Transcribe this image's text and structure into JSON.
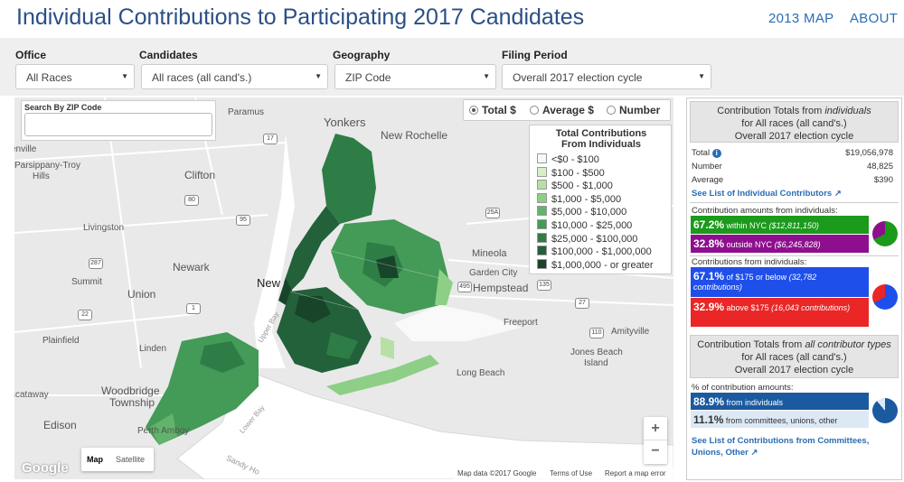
{
  "header": {
    "title": "Individual Contributions to Participating 2017 Candidates",
    "nav_map": "2013 MAP",
    "nav_about": "ABOUT"
  },
  "filters": {
    "office": {
      "label": "Office",
      "value": "All Races"
    },
    "candidates": {
      "label": "Candidates",
      "value": "All races (all cand's.)"
    },
    "geography": {
      "label": "Geography",
      "value": "ZIP Code"
    },
    "period": {
      "label": "Filing Period",
      "value": "Overall 2017 election cycle"
    }
  },
  "map": {
    "search_label": "Search By ZIP Code",
    "search_value": "",
    "radios": [
      {
        "label": "Total $",
        "selected": true
      },
      {
        "label": "Average $",
        "selected": false
      },
      {
        "label": "Number",
        "selected": false
      }
    ],
    "legend_title": "Total Contributions From Individuals",
    "legend": [
      {
        "label": "<$0 - $100",
        "color": "#f6faf5"
      },
      {
        "label": "$100 - $500",
        "color": "#d7efc9"
      },
      {
        "label": "$500 - $1,000",
        "color": "#b6e0a5"
      },
      {
        "label": "$1,000 - $5,000",
        "color": "#8dcf86"
      },
      {
        "label": "$5,000 - $10,000",
        "color": "#62b36b"
      },
      {
        "label": "$10,000 - $25,000",
        "color": "#449a57"
      },
      {
        "label": "$25,000 - $100,000",
        "color": "#2e7d46"
      },
      {
        "label": "$100,000 - $1,000,000",
        "color": "#22613a"
      },
      {
        "label": "$1,000,000 - or greater",
        "color": "#18452a"
      }
    ],
    "places": {
      "yonkers": "Yonkers",
      "paramus": "Paramus",
      "new_rochelle": "New Rochelle",
      "clifton": "Clifton",
      "parsippany": "Parsippany-Troy",
      "hills": "Hills",
      "livingston": "Livingston",
      "newark": "Newark",
      "summit": "Summit",
      "union": "Union",
      "plainfield": "Plainfield",
      "linden": "Linden",
      "woodbridge": "Woodbridge",
      "township": "Township",
      "edison": "Edison",
      "scataway": "scataway",
      "perth_amboy": "Perth Amboy",
      "mineola": "Mineola",
      "garden_city": "Garden City",
      "hempstead": "Hempstead",
      "freeport": "Freeport",
      "amityville": "Amityville",
      "jones_beach": "Jones Beach",
      "island": "Island",
      "long_beach": "Long Beach",
      "new_york": "New",
      "enville": "enville",
      "lower_bay": "Lower Bay",
      "upper_bay": "Upper Bay",
      "sandy_hook": "Sandy Ho"
    },
    "shields": [
      "17",
      "80",
      "95",
      "287",
      "22",
      "1",
      "25A",
      "135",
      "495",
      "27",
      "110"
    ],
    "map_type": {
      "map": "Map",
      "satellite": "Satellite"
    },
    "zoom_in": "+",
    "zoom_out": "−",
    "attribution": {
      "data": "Map data ©2017 Google",
      "terms": "Terms of Use",
      "report": "Report a map error"
    },
    "google_logo": "Google"
  },
  "panel": {
    "ind_head": {
      "line1": "Contribution Totals from ",
      "line1_em": "individuals",
      "line2": "for All races (all cand's.)",
      "line3": "Overall 2017 election cycle"
    },
    "total": {
      "label": "Total",
      "value": "$19,056,978"
    },
    "number": {
      "label": "Number",
      "value": "48,825"
    },
    "average": {
      "label": "Average",
      "value": "$390"
    },
    "link_contributors": "See List of Individual Contributors",
    "amounts_label": "Contribution amounts from individuals:",
    "within": {
      "pct": "67.2%",
      "text": " within NYC ",
      "amt": "($12,811,150)",
      "color": "#1b9a1b"
    },
    "outside": {
      "pct": "32.8%",
      "text": " outside NYC ",
      "amt": "($6,245,828)",
      "color": "#8e0f8e"
    },
    "contrib_label": "Contributions from individuals:",
    "below": {
      "pct": "67.1%",
      "text": " of $175 or below ",
      "amt": "(32,782 contributions)",
      "color": "#1f4fea"
    },
    "above": {
      "pct": "32.9%",
      "text": " above $175 ",
      "amt": "(16,043 contributions)",
      "color": "#ea2626"
    },
    "all_head": {
      "line1": "Contribution Totals from ",
      "line1_em": "all contributor types",
      "line2": "for All races (all cand's.)",
      "line3": "Overall 2017 election cycle"
    },
    "pct_label": "% of contribution amounts:",
    "from_ind": {
      "pct": "88.9%",
      "text": " from individuals",
      "color": "#1c5a9f"
    },
    "from_com": {
      "pct": "11.1%",
      "text": " from committees, unions, other",
      "color": "#dce9f5"
    },
    "link_committees": "See List of Contributions from Committees, Unions, Other"
  }
}
